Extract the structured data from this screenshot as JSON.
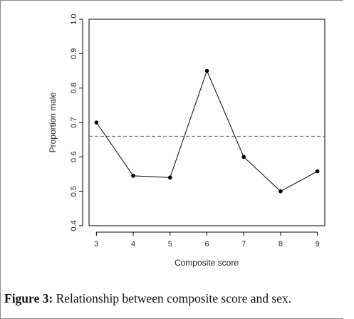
{
  "chart_data": {
    "type": "line",
    "x": [
      3,
      4,
      5,
      6,
      7,
      8,
      9
    ],
    "y": [
      0.7,
      0.545,
      0.54,
      0.85,
      0.6,
      0.5,
      0.558
    ],
    "x_ticks": [
      "3",
      "4",
      "5",
      "6",
      "7",
      "8",
      "9"
    ],
    "y_ticks": [
      "0.4",
      "0.5",
      "0.6",
      "0.7",
      "0.8",
      "0.9",
      "1.0"
    ],
    "xlabel": "Composite score",
    "ylabel": "Proportion male",
    "xlim": [
      2.8,
      9.2
    ],
    "ylim": [
      0.4,
      1.0
    ],
    "reference_line": 0.66,
    "grid": false,
    "colors": {
      "line": "#000000",
      "reference": "#666666",
      "axis": "#000000"
    }
  },
  "caption": {
    "label": "Figure 3:",
    "text": " Relationship between composite score and sex."
  }
}
